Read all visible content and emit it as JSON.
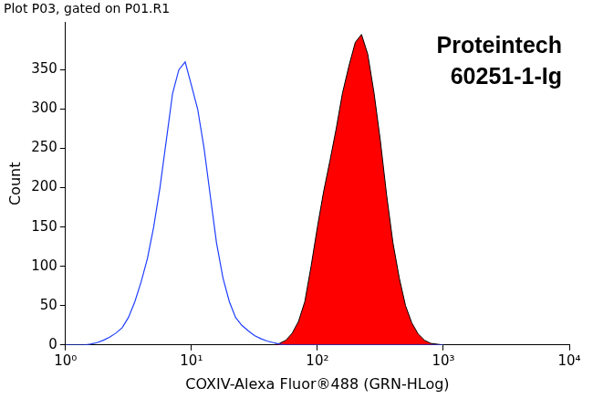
{
  "chart_data": {
    "type": "line",
    "title": "Plot P03, gated on P01.R1",
    "annotation": [
      "Proteintech",
      "60251-1-Ig"
    ],
    "x_label": "COXIV-Alexa Fluor®488 (GRN-HLog)",
    "y_label": "Count",
    "log": "x",
    "grid": false,
    "xlim": [
      1,
      10000
    ],
    "xticks": [
      {
        "value": 1,
        "label": "10⁰"
      },
      {
        "value": 10,
        "label": "10¹"
      },
      {
        "value": 100,
        "label": "10²"
      },
      {
        "value": 1000,
        "label": "10³"
      },
      {
        "value": 10000,
        "label": "10⁴"
      }
    ],
    "ylim": [
      0,
      410
    ],
    "yticks": [
      0,
      50,
      100,
      150,
      200,
      250,
      300,
      350
    ],
    "x": [
      1,
      1.12,
      1.26,
      1.41,
      1.58,
      1.78,
      2,
      2.24,
      2.51,
      2.82,
      3.16,
      3.55,
      3.98,
      4.47,
      5.01,
      5.62,
      6.31,
      7.08,
      7.94,
      8.91,
      10,
      11.2,
      12.6,
      14.1,
      15.8,
      17.8,
      20,
      22.4,
      25.1,
      28.2,
      31.6,
      35.5,
      39.8,
      44.7,
      50.1,
      56.2,
      63.1,
      70.8,
      79.4,
      89.1,
      100,
      112,
      126,
      141,
      158,
      178,
      200,
      224,
      251,
      282,
      316,
      355,
      398,
      447,
      501,
      562,
      631,
      708,
      794,
      891,
      1000
    ],
    "series": [
      {
        "type": "line",
        "color": "#1f3fff",
        "values": [
          0,
          0,
          0,
          0,
          1,
          3,
          6,
          10,
          15,
          22,
          35,
          55,
          80,
          110,
          150,
          200,
          260,
          320,
          350,
          360,
          330,
          300,
          250,
          190,
          130,
          85,
          55,
          35,
          25,
          18,
          12,
          8,
          5,
          3,
          1,
          0,
          0,
          0,
          0,
          0,
          0,
          0,
          0,
          0,
          0,
          0,
          0,
          0,
          0,
          0,
          0,
          0,
          0,
          0,
          0,
          0,
          0,
          0,
          0,
          0,
          0
        ]
      },
      {
        "type": "area",
        "color": "#ff0000",
        "values": [
          0,
          0,
          0,
          0,
          0,
          0,
          0,
          0,
          0,
          0,
          0,
          0,
          0,
          0,
          0,
          0,
          0,
          0,
          0,
          0,
          0,
          0,
          0,
          0,
          0,
          0,
          0,
          0,
          0,
          0,
          0,
          0,
          0,
          0,
          2,
          6,
          15,
          30,
          55,
          100,
          150,
          195,
          235,
          275,
          320,
          355,
          385,
          395,
          370,
          320,
          260,
          190,
          130,
          85,
          50,
          28,
          14,
          6,
          2,
          1,
          0
        ]
      }
    ]
  }
}
